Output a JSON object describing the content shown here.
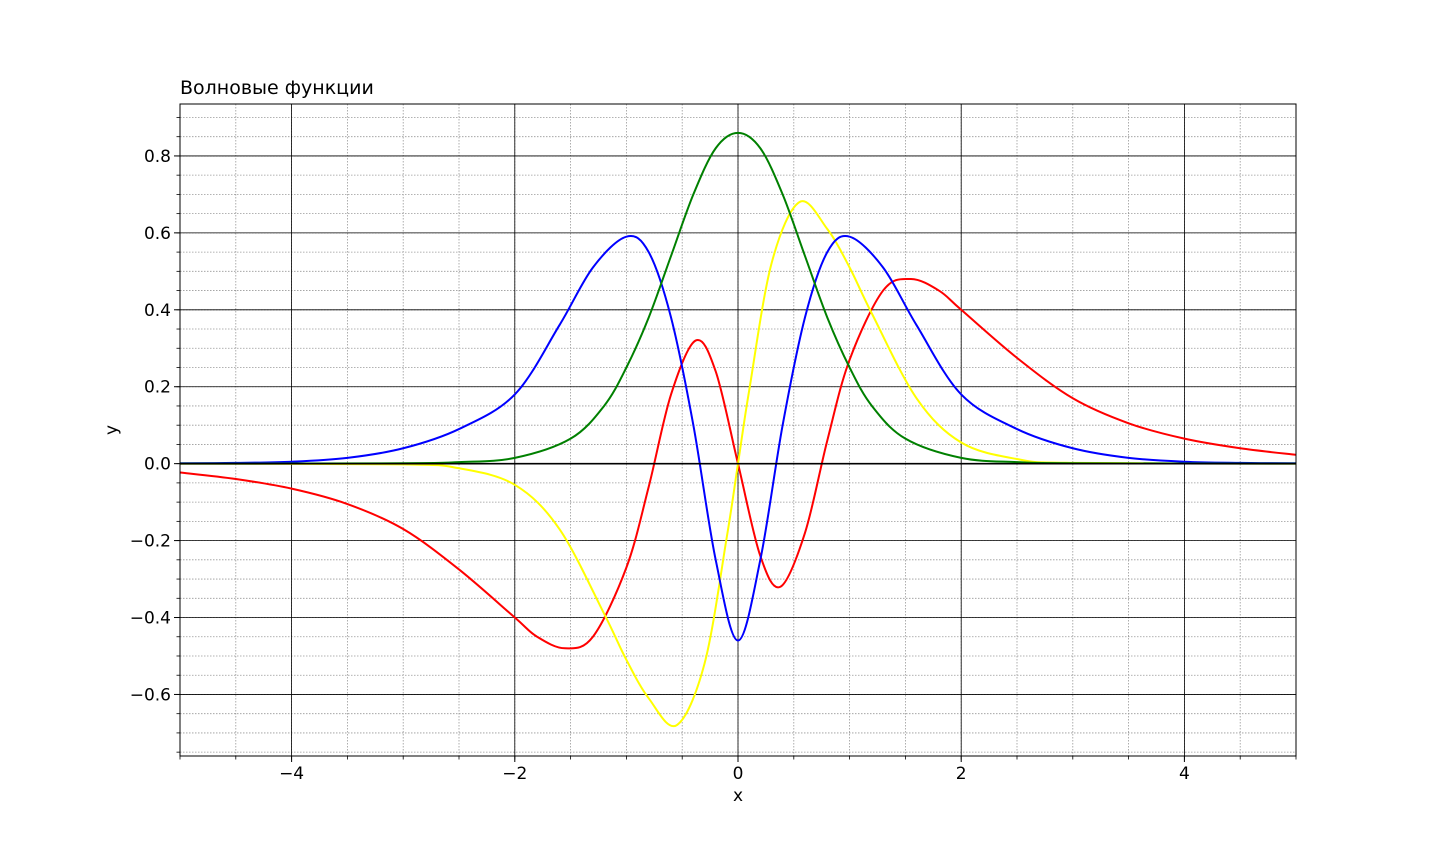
{
  "chart_data": {
    "type": "line",
    "title": "Волновые функции",
    "xlabel": "x",
    "ylabel": "y",
    "xlim": [
      -5,
      5
    ],
    "ylim": [
      -0.76,
      0.935
    ],
    "x_ticks": [
      -4,
      -2,
      0,
      2,
      4
    ],
    "x_tick_labels": [
      "−4",
      "−2",
      "0",
      "2",
      "4"
    ],
    "y_ticks": [
      -0.6,
      -0.4,
      -0.2,
      0.0,
      0.2,
      0.4,
      0.6,
      0.8
    ],
    "y_tick_labels": [
      "−0.6",
      "−0.4",
      "−0.2",
      "0.0",
      "0.2",
      "0.4",
      "0.6",
      "0.8"
    ],
    "grid": "major and minor",
    "series": [
      {
        "color": "#ff0000",
        "x": [
          -5,
          -4.5,
          -4,
          -3.5,
          -3,
          -2.5,
          -2,
          -1.8,
          -1.55,
          -1.3,
          -1.0,
          -0.8,
          -0.6,
          -0.38,
          -0.2,
          0,
          0.2,
          0.38,
          0.6,
          0.8,
          1.0,
          1.3,
          1.55,
          1.8,
          2,
          2.5,
          3,
          3.5,
          4,
          4.5,
          5
        ],
        "values": [
          -0.023,
          -0.04,
          -0.065,
          -0.105,
          -0.17,
          -0.275,
          -0.4,
          -0.45,
          -0.48,
          -0.45,
          -0.27,
          -0.06,
          0.18,
          0.32,
          0.24,
          0,
          -0.24,
          -0.32,
          -0.18,
          0.06,
          0.27,
          0.45,
          0.48,
          0.45,
          0.4,
          0.275,
          0.17,
          0.105,
          0.065,
          0.04,
          0.023
        ]
      },
      {
        "color": "#ffff00",
        "x": [
          -5,
          -3,
          -2.5,
          -2,
          -1.6,
          -1.2,
          -1.0,
          -0.8,
          -0.55,
          -0.3,
          -0.1,
          0,
          0.1,
          0.3,
          0.55,
          0.8,
          1.0,
          1.2,
          1.6,
          2,
          2.5,
          3,
          5
        ],
        "values": [
          0,
          -0.002,
          -0.012,
          -0.055,
          -0.17,
          -0.39,
          -0.51,
          -0.61,
          -0.68,
          -0.52,
          -0.19,
          0,
          0.19,
          0.52,
          0.68,
          0.61,
          0.51,
          0.39,
          0.17,
          0.055,
          0.012,
          0.002,
          0
        ]
      },
      {
        "color": "#0000ff",
        "x": [
          -5,
          -4.5,
          -4,
          -3.5,
          -3,
          -2.5,
          -2,
          -1.6,
          -1.3,
          -1.0,
          -0.8,
          -0.6,
          -0.4,
          -0.2,
          0,
          0.2,
          0.4,
          0.6,
          0.8,
          1.0,
          1.3,
          1.6,
          2,
          2.5,
          3,
          3.5,
          4,
          4.5,
          5
        ],
        "values": [
          0.001,
          0.002,
          0.005,
          0.015,
          0.04,
          0.09,
          0.18,
          0.36,
          0.51,
          0.59,
          0.55,
          0.38,
          0.1,
          -0.25,
          -0.46,
          -0.25,
          0.1,
          0.38,
          0.55,
          0.59,
          0.51,
          0.36,
          0.18,
          0.09,
          0.04,
          0.015,
          0.005,
          0.002,
          0.001
        ]
      },
      {
        "color": "#008000",
        "x": [
          -5,
          -3,
          -2.5,
          -2,
          -1.5,
          -1.2,
          -1.0,
          -0.8,
          -0.6,
          -0.4,
          -0.2,
          0,
          0.2,
          0.4,
          0.6,
          0.8,
          1.0,
          1.2,
          1.5,
          2,
          2.5,
          3,
          5
        ],
        "values": [
          0,
          0.001,
          0.004,
          0.015,
          0.065,
          0.15,
          0.25,
          0.38,
          0.54,
          0.7,
          0.82,
          0.86,
          0.82,
          0.7,
          0.54,
          0.38,
          0.25,
          0.15,
          0.065,
          0.015,
          0.004,
          0.001,
          0
        ]
      }
    ]
  }
}
